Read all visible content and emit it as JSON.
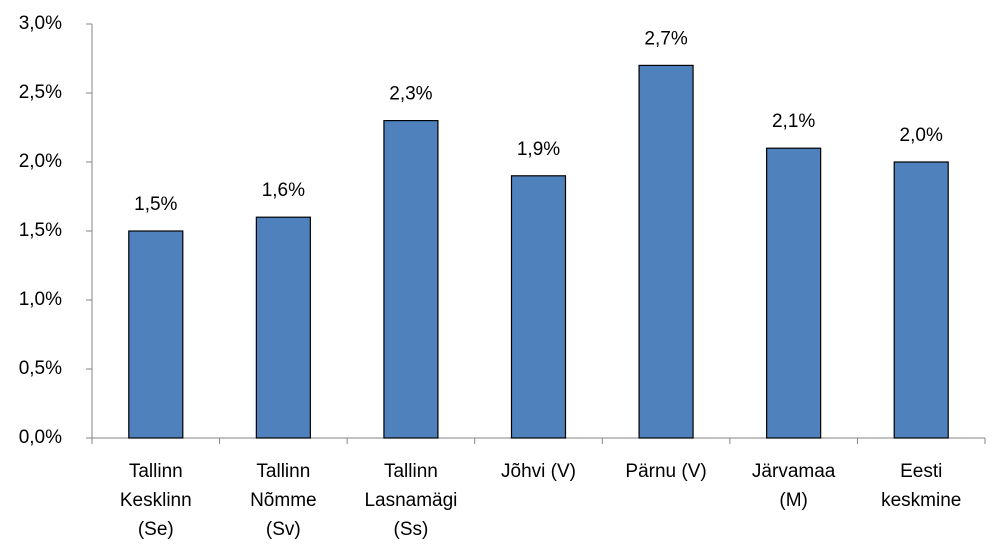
{
  "chart_data": {
    "type": "bar",
    "categories": [
      "Tallinn\nKesklinn\n(Se)",
      "Tallinn\nNõmme\n(Sv)",
      "Tallinn\nLasnamägi\n(Ss)",
      "Jõhvi (V)",
      "Pärnu (V)",
      "Järvamaa\n(M)",
      "Eesti\nkeskmine"
    ],
    "values": [
      1.5,
      1.6,
      2.3,
      1.9,
      2.7,
      2.1,
      2.0
    ],
    "value_labels": [
      "1,5%",
      "1,6%",
      "2,3%",
      "1,9%",
      "2,7%",
      "2,1%",
      "2,0%"
    ],
    "color": "#4f81bd",
    "ylim": [
      0,
      3
    ],
    "yticks": [
      {
        "value": 0,
        "label": "0,0%"
      },
      {
        "value": 0.5,
        "label": "0,5%"
      },
      {
        "value": 1,
        "label": "1,0%"
      },
      {
        "value": 1.5,
        "label": "1,5%"
      },
      {
        "value": 2,
        "label": "2,0%"
      },
      {
        "value": 2.5,
        "label": "2,5%"
      },
      {
        "value": 3,
        "label": "3,0%"
      }
    ],
    "grid": false
  }
}
